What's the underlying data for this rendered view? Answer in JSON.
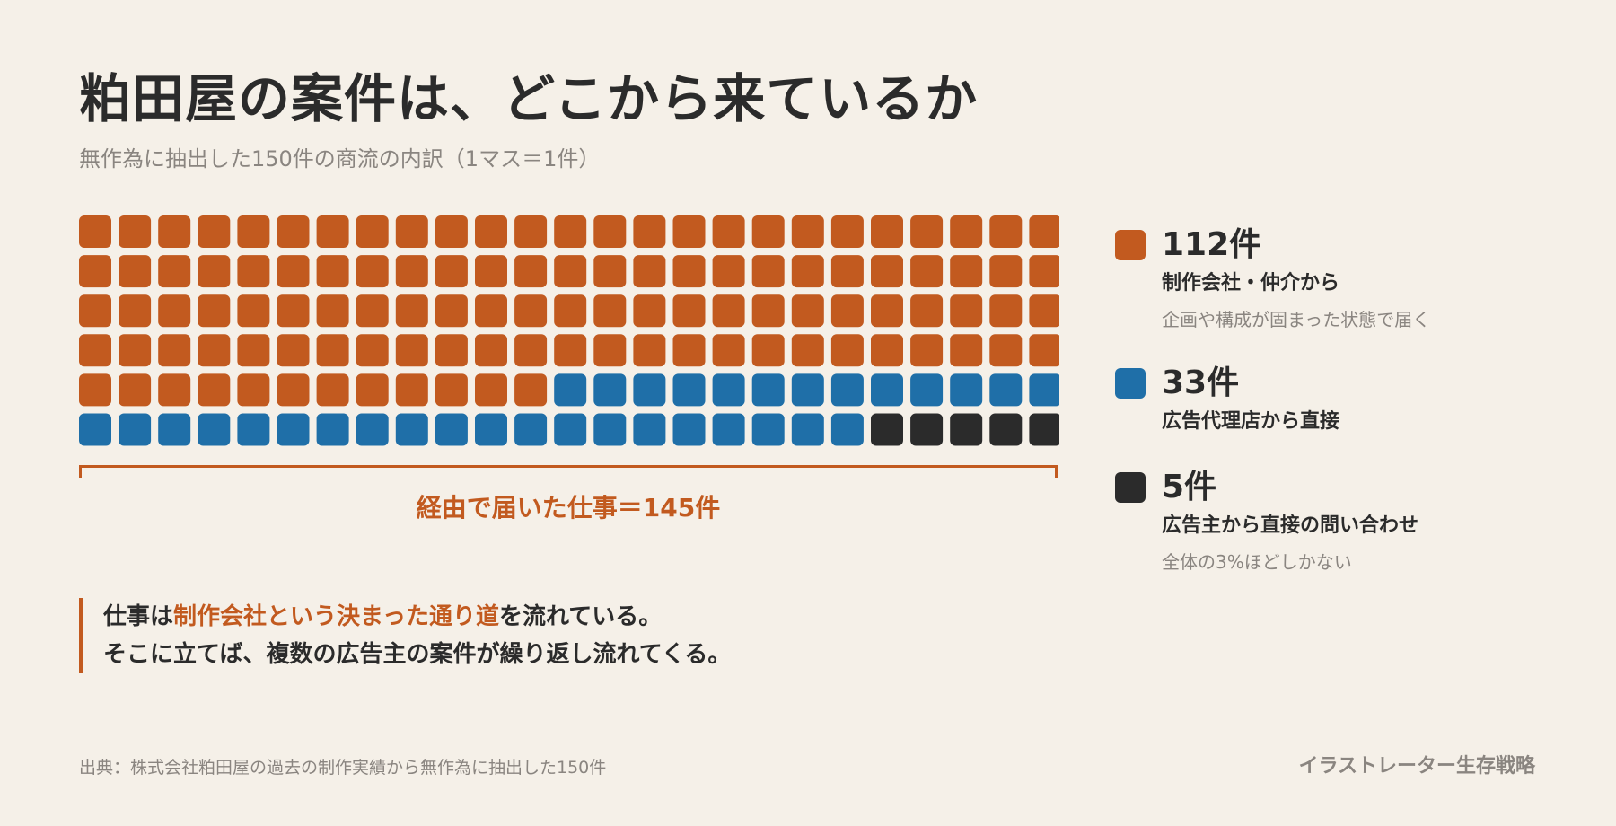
{
  "title": "粕田屋の案件は、どこから来ているか",
  "subtitle": "無作為に抽出した150件の商流の内訳（1マス＝1件）",
  "colors": {
    "background": "#f5f0e8",
    "orange": "#c25a1f",
    "blue": "#1f6fa8",
    "black": "#2b2b2b",
    "muted": "#8a8580"
  },
  "chart_data": {
    "type": "waffle",
    "columns": 25,
    "rows": 6,
    "unit": "1マス＝1件",
    "total": 150,
    "series": [
      {
        "name": "制作会社・仲介から",
        "value": 112,
        "color": "#c25a1f"
      },
      {
        "name": "広告代理店から直接",
        "value": 33,
        "color": "#1f6fa8"
      },
      {
        "name": "広告主から直接の問い合わせ",
        "value": 5,
        "color": "#2b2b2b"
      }
    ],
    "bracket_label": "経由で届いた仕事＝145件",
    "legend_placement": "right"
  },
  "legend": [
    {
      "count": "112件",
      "label": "制作会社・仲介から",
      "note": "企画や構成が固まった状態で届く",
      "color": "#c25a1f"
    },
    {
      "count": "33件",
      "label": "広告代理店から直接",
      "note": "",
      "color": "#1f6fa8"
    },
    {
      "count": "5件",
      "label": "広告主から直接の問い合わせ",
      "note": "全体の3%ほどしかない",
      "color": "#2b2b2b"
    }
  ],
  "callout": {
    "line1_pre": "仕事は",
    "line1_highlight": "制作会社という決まった通り道",
    "line1_post": "を流れている。",
    "line2": "そこに立てば、複数の広告主の案件が繰り返し流れてくる。"
  },
  "footer": {
    "source": "出典：株式会社粕田屋の過去の制作実績から無作為に抽出した150件",
    "brand": "イラストレーター生存戦略"
  }
}
